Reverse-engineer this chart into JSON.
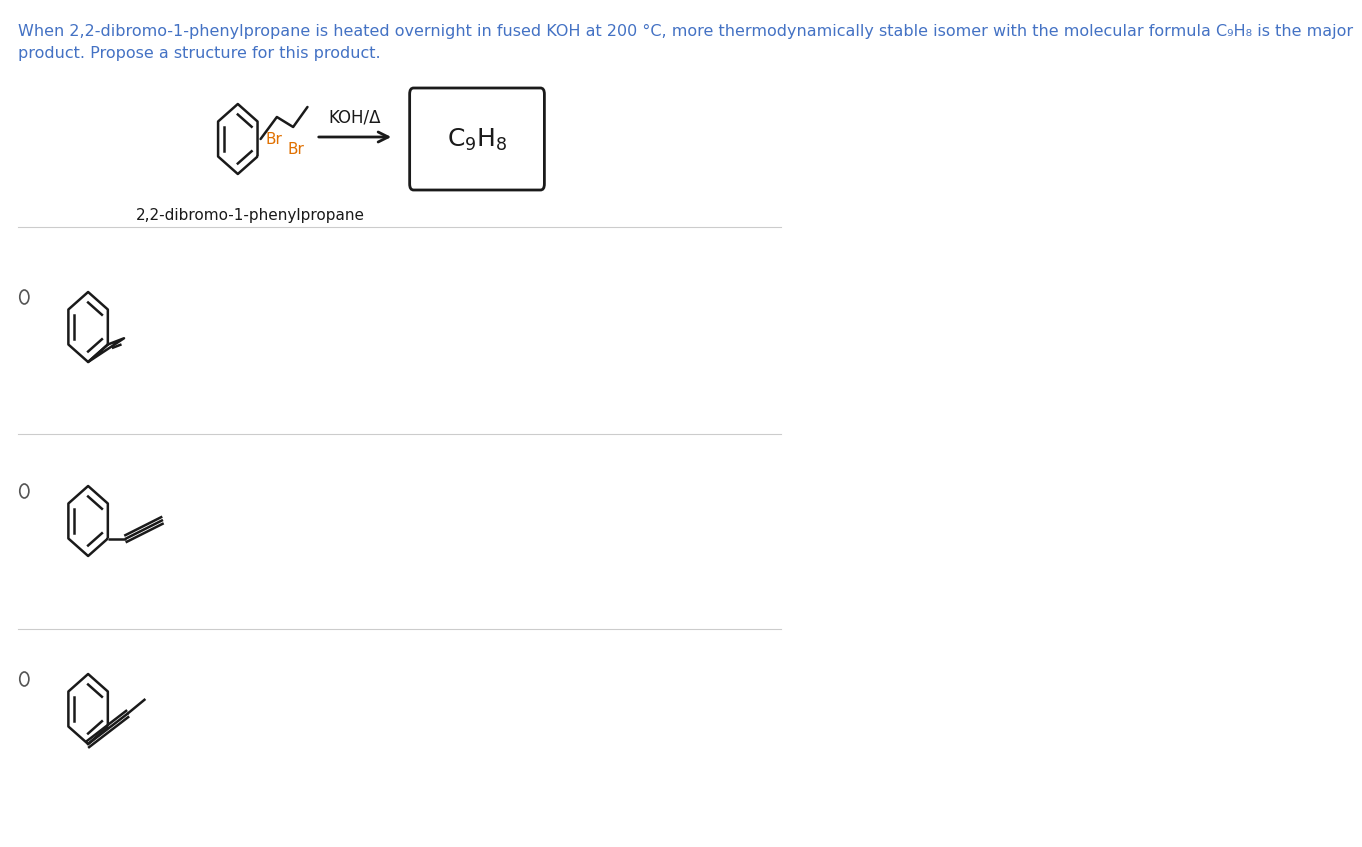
{
  "title_line1": "When 2,2-dibromo-1-phenylpropane is heated overnight in fused KOH at 200 °C, more thermodynamically stable isomer with the molecular formula C₉H₈ is the major",
  "title_line2": "product. Propose a structure for this product.",
  "title_color": "#4472c4",
  "bg_color": "#ffffff",
  "koh_label": "KOH/Δ",
  "product_formula": "C₉H₈",
  "reactant_label": "2,2-dibromo-1-phenylpropane",
  "br_color": "#e07000",
  "line_color": "#1a1a1a",
  "radio_color": "#555555",
  "divider_color": "#cccccc",
  "font_size_title": 11.5,
  "font_size_label": 11,
  "font_size_formula": 16
}
